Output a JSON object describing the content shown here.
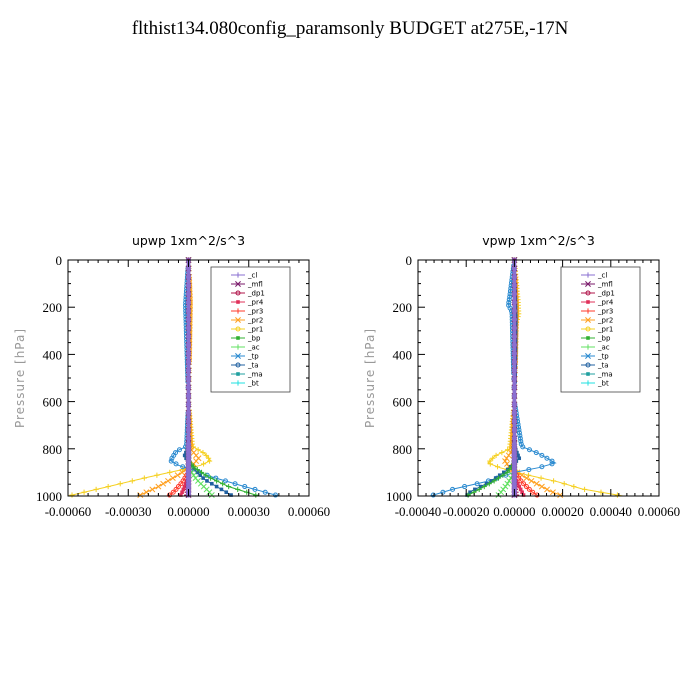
{
  "page": {
    "title": "flthist134.080config_paramsonly  BUDGET at275E,-17N"
  },
  "colors": {
    "_cl": "#8a6fd0",
    "_mfl": "#7a1a6a",
    "_dp1": "#b0144a",
    "_pr4": "#e0305a",
    "_pr3": "#ff3a2a",
    "_pr2": "#ffa020",
    "_pr1": "#f5d020",
    "_bp": "#30b030",
    "_ac": "#60e060",
    "_tp": "#2a8ad0",
    "_ta": "#2060a0",
    "_ma": "#20a0a0",
    "_bt": "#20e0e0"
  },
  "chart_data": [
    {
      "type": "line",
      "title": "upwp   1xm^2/s^3",
      "xlabel": "",
      "ylabel": "Pressure [hPa]",
      "xlim": [
        -0.0006,
        0.0006
      ],
      "ylim": [
        1000,
        0
      ],
      "x_ticks": [
        "-0.00060",
        "-0.00030",
        "0.00000",
        "0.00030",
        "0.00060"
      ],
      "x_tick_values": [
        -0.0006,
        -0.0003,
        0.0,
        0.0003,
        0.0006
      ],
      "y_ticks": [
        "0",
        "200",
        "400",
        "600",
        "800",
        "1000"
      ],
      "y_tick_values": [
        0,
        200,
        400,
        600,
        800,
        1000
      ],
      "legend": [
        "_cl",
        "_mfl",
        "_dp1",
        "_pr4",
        "_pr3",
        "_pr2",
        "_pr1",
        "_bp",
        "_ac",
        "_tp",
        "_ta",
        "_ma",
        "_bt"
      ],
      "legend_position": "top-right",
      "series": [
        {
          "name": "_pr1",
          "points": [
            [
              0,
              0
            ],
            [
              5e-06,
              180
            ],
            [
              0,
              600
            ],
            [
              2e-05,
              790
            ],
            [
              8e-05,
              820
            ],
            [
              0.00011,
              850
            ],
            [
              6e-05,
              870
            ],
            [
              -4e-05,
              890
            ],
            [
              -0.0002,
              920
            ],
            [
              -0.0004,
              960
            ],
            [
              -0.0006,
              1000
            ]
          ]
        },
        {
          "name": "_pr2",
          "points": [
            [
              0,
              0
            ],
            [
              8e-06,
              180
            ],
            [
              0,
              600
            ],
            [
              1e-05,
              800
            ],
            [
              5e-05,
              840
            ],
            [
              2e-05,
              870
            ],
            [
              -5e-05,
              910
            ],
            [
              -0.00015,
              960
            ],
            [
              -0.00025,
              1000
            ]
          ]
        },
        {
          "name": "_tp",
          "points": [
            [
              0,
              0
            ],
            [
              -1.5e-05,
              190
            ],
            [
              0,
              600
            ],
            [
              -1e-05,
              790
            ],
            [
              -6e-05,
              810
            ],
            [
              -9e-05,
              850
            ],
            [
              -5e-05,
              870
            ],
            [
              2e-05,
              890
            ],
            [
              0.00012,
              920
            ],
            [
              0.00028,
              960
            ],
            [
              0.00045,
              1000
            ]
          ]
        },
        {
          "name": "_ta",
          "points": [
            [
              0,
              0
            ],
            [
              0,
              790
            ],
            [
              -2e-05,
              830
            ],
            [
              2e-05,
              880
            ],
            [
              8e-05,
              930
            ],
            [
              0.00018,
              980
            ],
            [
              0.00022,
              1000
            ]
          ]
        },
        {
          "name": "_bp",
          "points": [
            [
              0,
              0
            ],
            [
              0,
              850
            ],
            [
              3e-05,
              880
            ],
            [
              0.0001,
              920
            ],
            [
              0.0002,
              960
            ],
            [
              0.00035,
              1000
            ]
          ]
        },
        {
          "name": "_ac",
          "points": [
            [
              0,
              0
            ],
            [
              0,
              880
            ],
            [
              4e-05,
              930
            ],
            [
              0.0001,
              980
            ],
            [
              0.00012,
              1000
            ]
          ]
        },
        {
          "name": "_pr3",
          "points": [
            [
              0,
              0
            ],
            [
              0,
              900
            ],
            [
              -3e-05,
              940
            ],
            [
              -7e-05,
              980
            ],
            [
              -0.0001,
              1000
            ]
          ]
        },
        {
          "name": "_pr4",
          "points": [
            [
              0,
              0
            ],
            [
              0,
              920
            ],
            [
              -2e-05,
              960
            ],
            [
              -4e-05,
              1000
            ]
          ]
        },
        {
          "name": "_dp1",
          "points": [
            [
              0,
              0
            ],
            [
              0,
              950
            ],
            [
              -1e-05,
              1000
            ]
          ]
        },
        {
          "name": "_mfl",
          "points": [
            [
              0,
              0
            ],
            [
              0,
              1000
            ]
          ]
        },
        {
          "name": "_cl",
          "points": [
            [
              0,
              0
            ],
            [
              0,
              1000
            ]
          ]
        }
      ]
    },
    {
      "type": "line",
      "title": "vpwp   1xm^2/s^3",
      "xlabel": "",
      "ylabel": "Pressure [hPa]",
      "xlim": [
        -0.0004,
        0.0006
      ],
      "ylim": [
        1000,
        0
      ],
      "x_ticks": [
        "-0.00040",
        "-0.00020",
        "0.00000",
        "0.00020",
        "0.00040",
        "0.00060"
      ],
      "x_tick_values": [
        -0.0004,
        -0.0002,
        0.0,
        0.0002,
        0.0004,
        0.0006
      ],
      "y_ticks": [
        "0",
        "200",
        "400",
        "600",
        "800",
        "1000"
      ],
      "y_tick_values": [
        0,
        200,
        400,
        600,
        800,
        1000
      ],
      "legend": [
        "_cl",
        "_mfl",
        "_dp1",
        "_pr4",
        "_pr3",
        "_pr2",
        "_pr1",
        "_bp",
        "_ac",
        "_tp",
        "_ta",
        "_ma",
        "_bt"
      ],
      "legend_position": "top-right",
      "series": [
        {
          "name": "_pr1",
          "points": [
            [
              0,
              0
            ],
            [
              1.5e-05,
              170
            ],
            [
              1.8e-05,
              230
            ],
            [
              5e-06,
              280
            ],
            [
              0,
              600
            ],
            [
              -2e-05,
              800
            ],
            [
              -8e-05,
              830
            ],
            [
              -0.00011,
              860
            ],
            [
              -6e-05,
              880
            ],
            [
              5e-05,
              910
            ],
            [
              0.00018,
              940
            ],
            [
              0.00028,
              970
            ],
            [
              0.00045,
              1000
            ]
          ]
        },
        {
          "name": "_pr2",
          "points": [
            [
              0,
              0
            ],
            [
              8e-06,
              200
            ],
            [
              0,
              600
            ],
            [
              -1e-05,
              810
            ],
            [
              -4e-05,
              850
            ],
            [
              -2e-05,
              880
            ],
            [
              6e-05,
              930
            ],
            [
              0.00015,
              980
            ],
            [
              0.0002,
              1000
            ]
          ]
        },
        {
          "name": "_tp",
          "points": [
            [
              0,
              0
            ],
            [
              -2e-05,
              160
            ],
            [
              -2.5e-05,
              190
            ],
            [
              -1e-05,
              220
            ],
            [
              0,
              600
            ],
            [
              3e-05,
              790
            ],
            [
              0.0001,
              820
            ],
            [
              0.00017,
              860
            ],
            [
              0.0001,
              880
            ],
            [
              0.0,
              900
            ],
            [
              -0.00012,
              940
            ],
            [
              -0.00025,
              970
            ],
            [
              -0.00035,
              1000
            ]
          ]
        },
        {
          "name": "_ta",
          "points": [
            [
              0,
              0
            ],
            [
              6e-06,
              250
            ],
            [
              0,
              790
            ],
            [
              2e-05,
              840
            ],
            [
              -3e-05,
              890
            ],
            [
              -0.0001,
              940
            ],
            [
              -0.00018,
              980
            ],
            [
              -0.0002,
              1000
            ]
          ]
        },
        {
          "name": "_bp",
          "points": [
            [
              0,
              0
            ],
            [
              0,
              860
            ],
            [
              -3e-05,
              900
            ],
            [
              -9e-05,
              940
            ],
            [
              -0.00016,
              980
            ],
            [
              -0.0002,
              1000
            ]
          ]
        },
        {
          "name": "_ac",
          "points": [
            [
              0,
              0
            ],
            [
              0,
              900
            ],
            [
              -3e-05,
              950
            ],
            [
              -6e-05,
              990
            ],
            [
              -7e-05,
              1000
            ]
          ]
        },
        {
          "name": "_pr3",
          "points": [
            [
              0,
              0
            ],
            [
              0,
              900
            ],
            [
              3e-05,
              940
            ],
            [
              7e-05,
              980
            ],
            [
              0.0001,
              1000
            ]
          ]
        },
        {
          "name": "_pr4",
          "points": [
            [
              0,
              0
            ],
            [
              0,
              920
            ],
            [
              2e-05,
              960
            ],
            [
              4e-05,
              1000
            ]
          ]
        },
        {
          "name": "_dp1",
          "points": [
            [
              0,
              0
            ],
            [
              0,
              950
            ],
            [
              1e-05,
              1000
            ]
          ]
        },
        {
          "name": "_mfl",
          "points": [
            [
              0,
              0
            ],
            [
              0,
              1000
            ]
          ]
        },
        {
          "name": "_cl",
          "points": [
            [
              0,
              0
            ],
            [
              0,
              1000
            ]
          ]
        }
      ]
    }
  ]
}
